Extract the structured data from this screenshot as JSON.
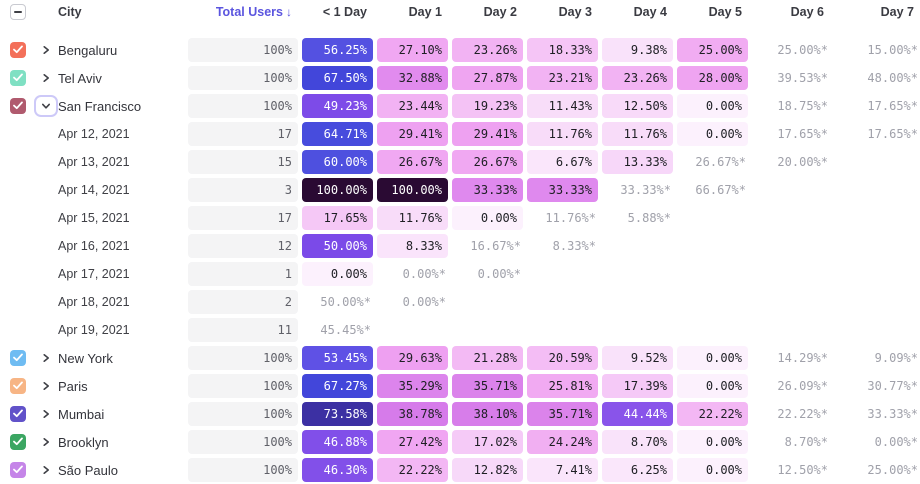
{
  "table": {
    "columns": {
      "city": "City",
      "total_users": "Total Users",
      "sort_indicator": "↓",
      "days": [
        "< 1 Day",
        "Day 1",
        "Day 2",
        "Day 3",
        "Day 4",
        "Day 5",
        "Day 6",
        "Day 7"
      ]
    },
    "select_all_state": "indeterminate",
    "rows": [
      {
        "kind": "city",
        "name": "Bengaluru",
        "checkbox_color": "#F3705A",
        "checked": true,
        "caret": "collapsed",
        "total": "100%",
        "cells": [
          {
            "t": "56.25%",
            "p": 56.25
          },
          {
            "t": "27.10%",
            "p": 27.1
          },
          {
            "t": "23.26%",
            "p": 23.26
          },
          {
            "t": "18.33%",
            "p": 18.33
          },
          {
            "t": "9.38%",
            "p": 9.38
          },
          {
            "t": "25.00%",
            "p": 25.0
          },
          {
            "t": "25.00%*",
            "e": true
          },
          {
            "t": "15.00%*",
            "e": true
          }
        ]
      },
      {
        "kind": "city",
        "name": "Tel Aviv",
        "checkbox_color": "#7FE0C3",
        "checked": true,
        "caret": "collapsed",
        "total": "100%",
        "cells": [
          {
            "t": "67.50%",
            "p": 67.5
          },
          {
            "t": "32.88%",
            "p": 32.88
          },
          {
            "t": "27.87%",
            "p": 27.87
          },
          {
            "t": "23.21%",
            "p": 23.21
          },
          {
            "t": "23.26%",
            "p": 23.26
          },
          {
            "t": "28.00%",
            "p": 28.0
          },
          {
            "t": "39.53%*",
            "e": true
          },
          {
            "t": "48.00%*",
            "e": true
          }
        ]
      },
      {
        "kind": "city",
        "name": "San Francisco",
        "checkbox_color": "#B05A6E",
        "checked": true,
        "caret": "expanded",
        "total": "100%",
        "cells": [
          {
            "t": "49.23%",
            "p": 49.23
          },
          {
            "t": "23.44%",
            "p": 23.44
          },
          {
            "t": "19.23%",
            "p": 19.23
          },
          {
            "t": "11.43%",
            "p": 11.43
          },
          {
            "t": "12.50%",
            "p": 12.5
          },
          {
            "t": "0.00%",
            "p": 0
          },
          {
            "t": "18.75%*",
            "e": true
          },
          {
            "t": "17.65%*",
            "e": true
          }
        ]
      },
      {
        "kind": "date",
        "name": "Apr 12, 2021",
        "total": "17",
        "cells": [
          {
            "t": "64.71%",
            "p": 64.71
          },
          {
            "t": "29.41%",
            "p": 29.41
          },
          {
            "t": "29.41%",
            "p": 29.41
          },
          {
            "t": "11.76%",
            "p": 11.76
          },
          {
            "t": "11.76%",
            "p": 11.76
          },
          {
            "t": "0.00%",
            "p": 0
          },
          {
            "t": "17.65%*",
            "e": true
          },
          {
            "t": "17.65%*",
            "e": true
          }
        ]
      },
      {
        "kind": "date",
        "name": "Apr 13, 2021",
        "total": "15",
        "cells": [
          {
            "t": "60.00%",
            "p": 60.0
          },
          {
            "t": "26.67%",
            "p": 26.67
          },
          {
            "t": "26.67%",
            "p": 26.67
          },
          {
            "t": "6.67%",
            "p": 6.67
          },
          {
            "t": "13.33%",
            "p": 13.33
          },
          {
            "t": "26.67%*",
            "e": true
          },
          {
            "t": "20.00%*",
            "e": true
          },
          null
        ]
      },
      {
        "kind": "date",
        "name": "Apr 14, 2021",
        "total": "3",
        "cells": [
          {
            "t": "100.00%",
            "p": 100
          },
          {
            "t": "100.00%",
            "p": 100
          },
          {
            "t": "33.33%",
            "p": 33.33
          },
          {
            "t": "33.33%",
            "p": 33.33
          },
          {
            "t": "33.33%*",
            "e": true
          },
          {
            "t": "66.67%*",
            "e": true
          },
          null,
          null
        ]
      },
      {
        "kind": "date",
        "name": "Apr 15, 2021",
        "total": "17",
        "cells": [
          {
            "t": "17.65%",
            "p": 17.65
          },
          {
            "t": "11.76%",
            "p": 11.76
          },
          {
            "t": "0.00%",
            "p": 0
          },
          {
            "t": "11.76%*",
            "e": true
          },
          {
            "t": "5.88%*",
            "e": true
          },
          null,
          null,
          null
        ]
      },
      {
        "kind": "date",
        "name": "Apr 16, 2021",
        "total": "12",
        "cells": [
          {
            "t": "50.00%",
            "p": 50.0
          },
          {
            "t": "8.33%",
            "p": 8.33
          },
          {
            "t": "16.67%*",
            "e": true
          },
          {
            "t": "8.33%*",
            "e": true
          },
          null,
          null,
          null,
          null
        ]
      },
      {
        "kind": "date",
        "name": "Apr 17, 2021",
        "total": "1",
        "cells": [
          {
            "t": "0.00%",
            "p": 0
          },
          {
            "t": "0.00%*",
            "e": true
          },
          {
            "t": "0.00%*",
            "e": true
          },
          null,
          null,
          null,
          null,
          null
        ]
      },
      {
        "kind": "date",
        "name": "Apr 18, 2021",
        "total": "2",
        "cells": [
          {
            "t": "50.00%*",
            "e": true
          },
          {
            "t": "0.00%*",
            "e": true
          },
          null,
          null,
          null,
          null,
          null,
          null
        ]
      },
      {
        "kind": "date",
        "name": "Apr 19, 2021",
        "total": "11",
        "cells": [
          {
            "t": "45.45%*",
            "e": true
          },
          null,
          null,
          null,
          null,
          null,
          null,
          null
        ]
      },
      {
        "kind": "city",
        "name": "New York",
        "checkbox_color": "#6FBCF2",
        "checked": true,
        "caret": "collapsed",
        "total": "100%",
        "cells": [
          {
            "t": "53.45%",
            "p": 53.45
          },
          {
            "t": "29.63%",
            "p": 29.63
          },
          {
            "t": "21.28%",
            "p": 21.28
          },
          {
            "t": "20.59%",
            "p": 20.59
          },
          {
            "t": "9.52%",
            "p": 9.52
          },
          {
            "t": "0.00%",
            "p": 0
          },
          {
            "t": "14.29%*",
            "e": true
          },
          {
            "t": "9.09%*",
            "e": true
          }
        ]
      },
      {
        "kind": "city",
        "name": "Paris",
        "checkbox_color": "#F7B585",
        "checked": true,
        "caret": "collapsed",
        "total": "100%",
        "cells": [
          {
            "t": "67.27%",
            "p": 67.27
          },
          {
            "t": "35.29%",
            "p": 35.29
          },
          {
            "t": "35.71%",
            "p": 35.71
          },
          {
            "t": "25.81%",
            "p": 25.81
          },
          {
            "t": "17.39%",
            "p": 17.39
          },
          {
            "t": "0.00%",
            "p": 0
          },
          {
            "t": "26.09%*",
            "e": true
          },
          {
            "t": "30.77%*",
            "e": true
          }
        ]
      },
      {
        "kind": "city",
        "name": "Mumbai",
        "checkbox_color": "#6152C9",
        "checked": true,
        "caret": "collapsed",
        "total": "100%",
        "cells": [
          {
            "t": "73.58%",
            "p": 73.58
          },
          {
            "t": "38.78%",
            "p": 38.78
          },
          {
            "t": "38.10%",
            "p": 38.1
          },
          {
            "t": "35.71%",
            "p": 35.71
          },
          {
            "t": "44.44%",
            "p": 44.44
          },
          {
            "t": "22.22%",
            "p": 22.22
          },
          {
            "t": "22.22%*",
            "e": true
          },
          {
            "t": "33.33%*",
            "e": true
          }
        ]
      },
      {
        "kind": "city",
        "name": "Brooklyn",
        "checkbox_color": "#3BA662",
        "checked": true,
        "caret": "collapsed",
        "total": "100%",
        "cells": [
          {
            "t": "46.88%",
            "p": 46.88
          },
          {
            "t": "27.42%",
            "p": 27.42
          },
          {
            "t": "17.02%",
            "p": 17.02
          },
          {
            "t": "24.24%",
            "p": 24.24
          },
          {
            "t": "8.70%",
            "p": 8.7
          },
          {
            "t": "0.00%",
            "p": 0
          },
          {
            "t": "8.70%*",
            "e": true
          },
          {
            "t": "0.00%*",
            "e": true
          }
        ]
      },
      {
        "kind": "city",
        "name": "São Paulo",
        "checkbox_color": "#C585E8",
        "checked": true,
        "caret": "collapsed",
        "total": "100%",
        "cells": [
          {
            "t": "46.30%",
            "p": 46.3
          },
          {
            "t": "22.22%",
            "p": 22.22
          },
          {
            "t": "12.82%",
            "p": 12.82
          },
          {
            "t": "7.41%",
            "p": 7.41
          },
          {
            "t": "6.25%",
            "p": 6.25
          },
          {
            "t": "0.00%",
            "p": 0
          },
          {
            "t": "12.50%*",
            "e": true
          },
          {
            "t": "25.00%*",
            "e": true
          }
        ]
      }
    ]
  },
  "colors": {
    "sorted_header": "#5B55DF",
    "header_text": "#3A3B42",
    "city_text": "#33343B",
    "estimate_text": "#A0A1AA",
    "total_pill_bg": "#F4F4F5",
    "total_pill_text": "#5F6068",
    "cell_text_dark": "#1E1F24",
    "cell_text_light": "#FFFFFF",
    "focus_ring": "#CDC9F8",
    "white_text_threshold": 42,
    "scale_stops": [
      [
        0,
        "#FCF1FD"
      ],
      [
        10,
        "#F9E1FA"
      ],
      [
        15,
        "#F6D2F8"
      ],
      [
        20,
        "#F4BFF5"
      ],
      [
        25,
        "#F1ACF2"
      ],
      [
        30,
        "#EE9FF1"
      ],
      [
        33,
        "#E08AEE"
      ],
      [
        36,
        "#DB82EB"
      ],
      [
        40,
        "#D478E9"
      ],
      [
        42,
        "#9A5CEC"
      ],
      [
        45,
        "#8552EA"
      ],
      [
        50,
        "#7B4AE8"
      ],
      [
        54,
        "#5A52E4"
      ],
      [
        58,
        "#5051DF"
      ],
      [
        63,
        "#4A4FDF"
      ],
      [
        68,
        "#4145D9"
      ],
      [
        72,
        "#3C34AC"
      ],
      [
        76,
        "#3B2B96"
      ],
      [
        85,
        "#321659"
      ],
      [
        100,
        "#2A0A33"
      ]
    ]
  }
}
